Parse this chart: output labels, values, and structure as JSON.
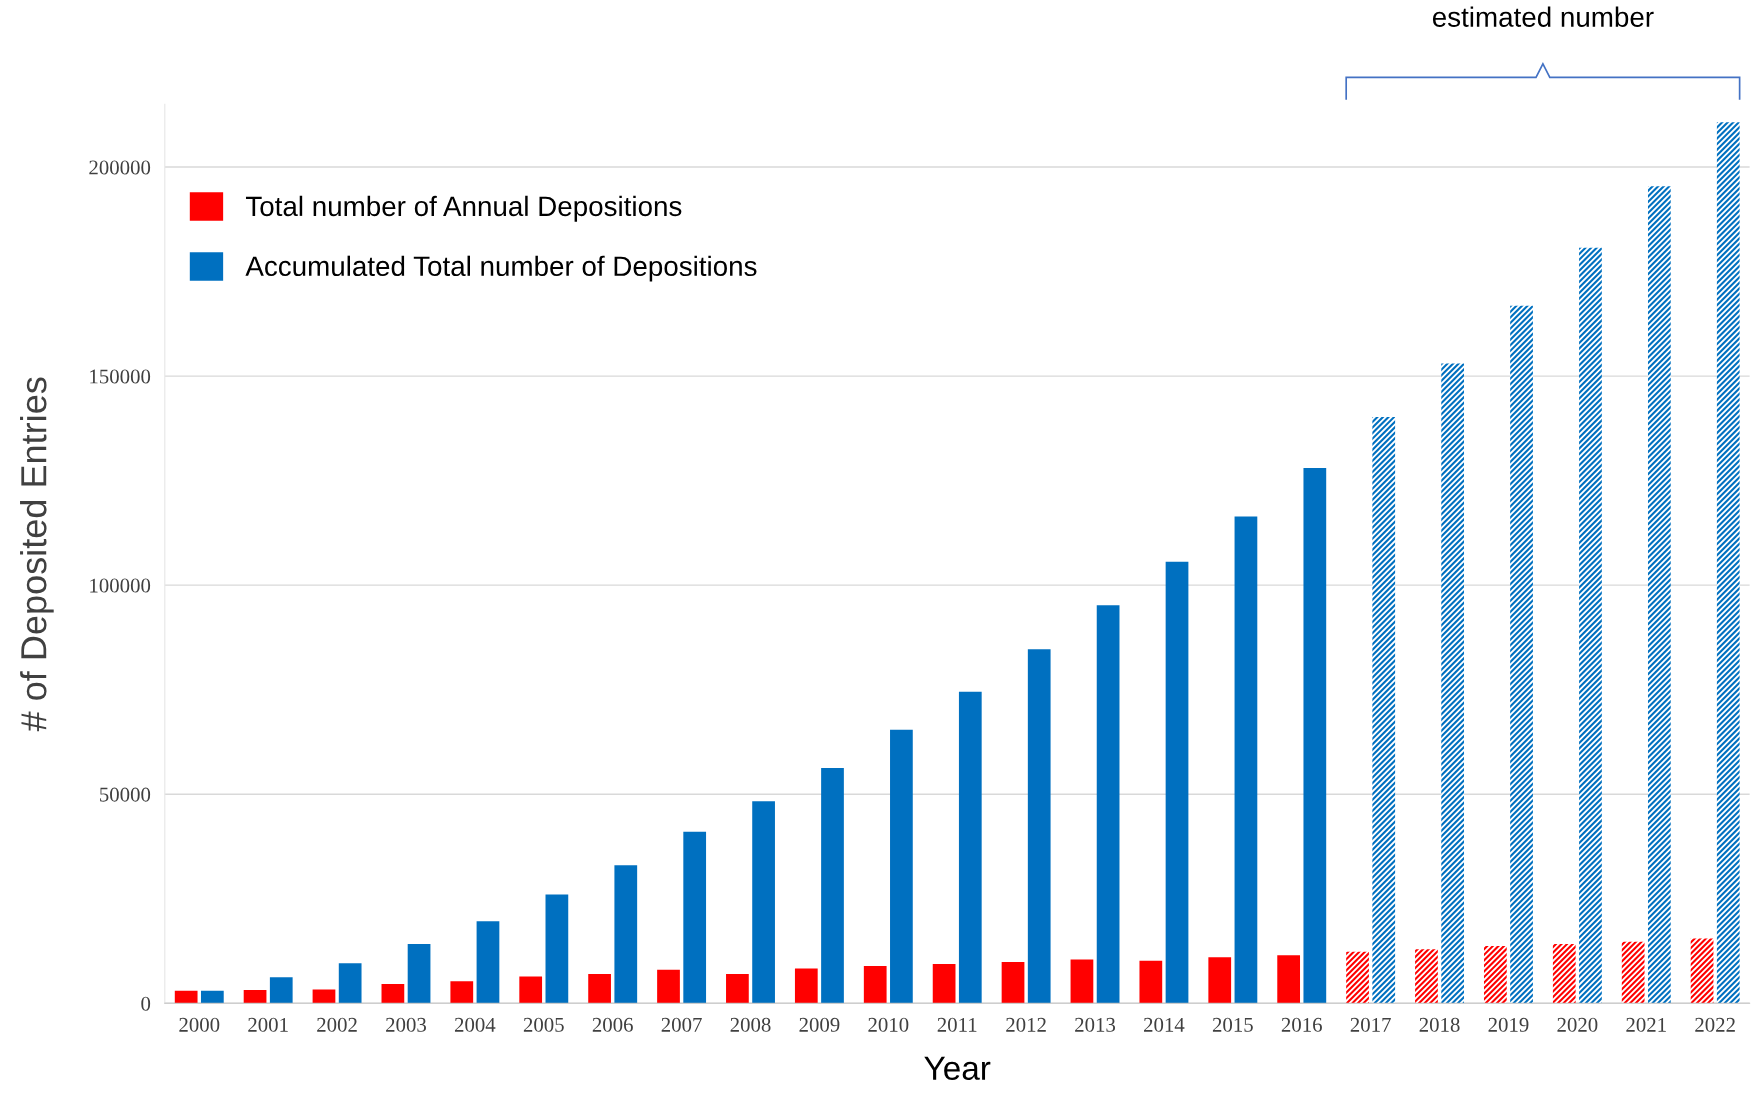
{
  "chart_data": {
    "type": "bar",
    "xlabel": "Year",
    "ylabel": "# of Deposited Entries",
    "categories": [
      "2000",
      "2001",
      "2002",
      "2003",
      "2004",
      "2005",
      "2006",
      "2007",
      "2008",
      "2009",
      "2010",
      "2011",
      "2012",
      "2013",
      "2014",
      "2015",
      "2016",
      "2017",
      "2018",
      "2019",
      "2020",
      "2021",
      "2022"
    ],
    "series": [
      {
        "name": "Total number of Annual Depositions",
        "color": "#ff0000",
        "values": [
          3000,
          3200,
          3300,
          4600,
          5300,
          6400,
          7000,
          8000,
          7000,
          8300,
          8900,
          9400,
          9900,
          10500,
          10200,
          11000,
          11500,
          null,
          null,
          null,
          null,
          null,
          null
        ]
      },
      {
        "name": "Accumulated Total number of Depositions",
        "color": "#0070c0",
        "values": [
          3000,
          6200,
          9600,
          14200,
          19600,
          26000,
          33000,
          41000,
          48300,
          56300,
          65400,
          74500,
          84700,
          95200,
          105600,
          116400,
          128000,
          null,
          null,
          null,
          null,
          null,
          null
        ]
      },
      {
        "color": "#ff0000",
        "values": [
          null,
          null,
          null,
          null,
          null,
          null,
          null,
          null,
          null,
          null,
          null,
          null,
          null,
          null,
          null,
          null,
          null,
          12300,
          12900,
          13700,
          14200,
          14700,
          15500
        ]
      },
      {
        "color": "#0070c0",
        "values": [
          null,
          null,
          null,
          null,
          null,
          null,
          null,
          null,
          null,
          null,
          null,
          null,
          null,
          null,
          null,
          null,
          null,
          140200,
          153000,
          166800,
          180700,
          195400,
          210700
        ]
      }
    ],
    "annotations": [
      "estimated number"
    ],
    "ylim": [
      0,
      215000
    ],
    "yticks": [
      0,
      50000,
      100000,
      150000,
      200000
    ],
    "grid": "y",
    "legend": "top left"
  }
}
